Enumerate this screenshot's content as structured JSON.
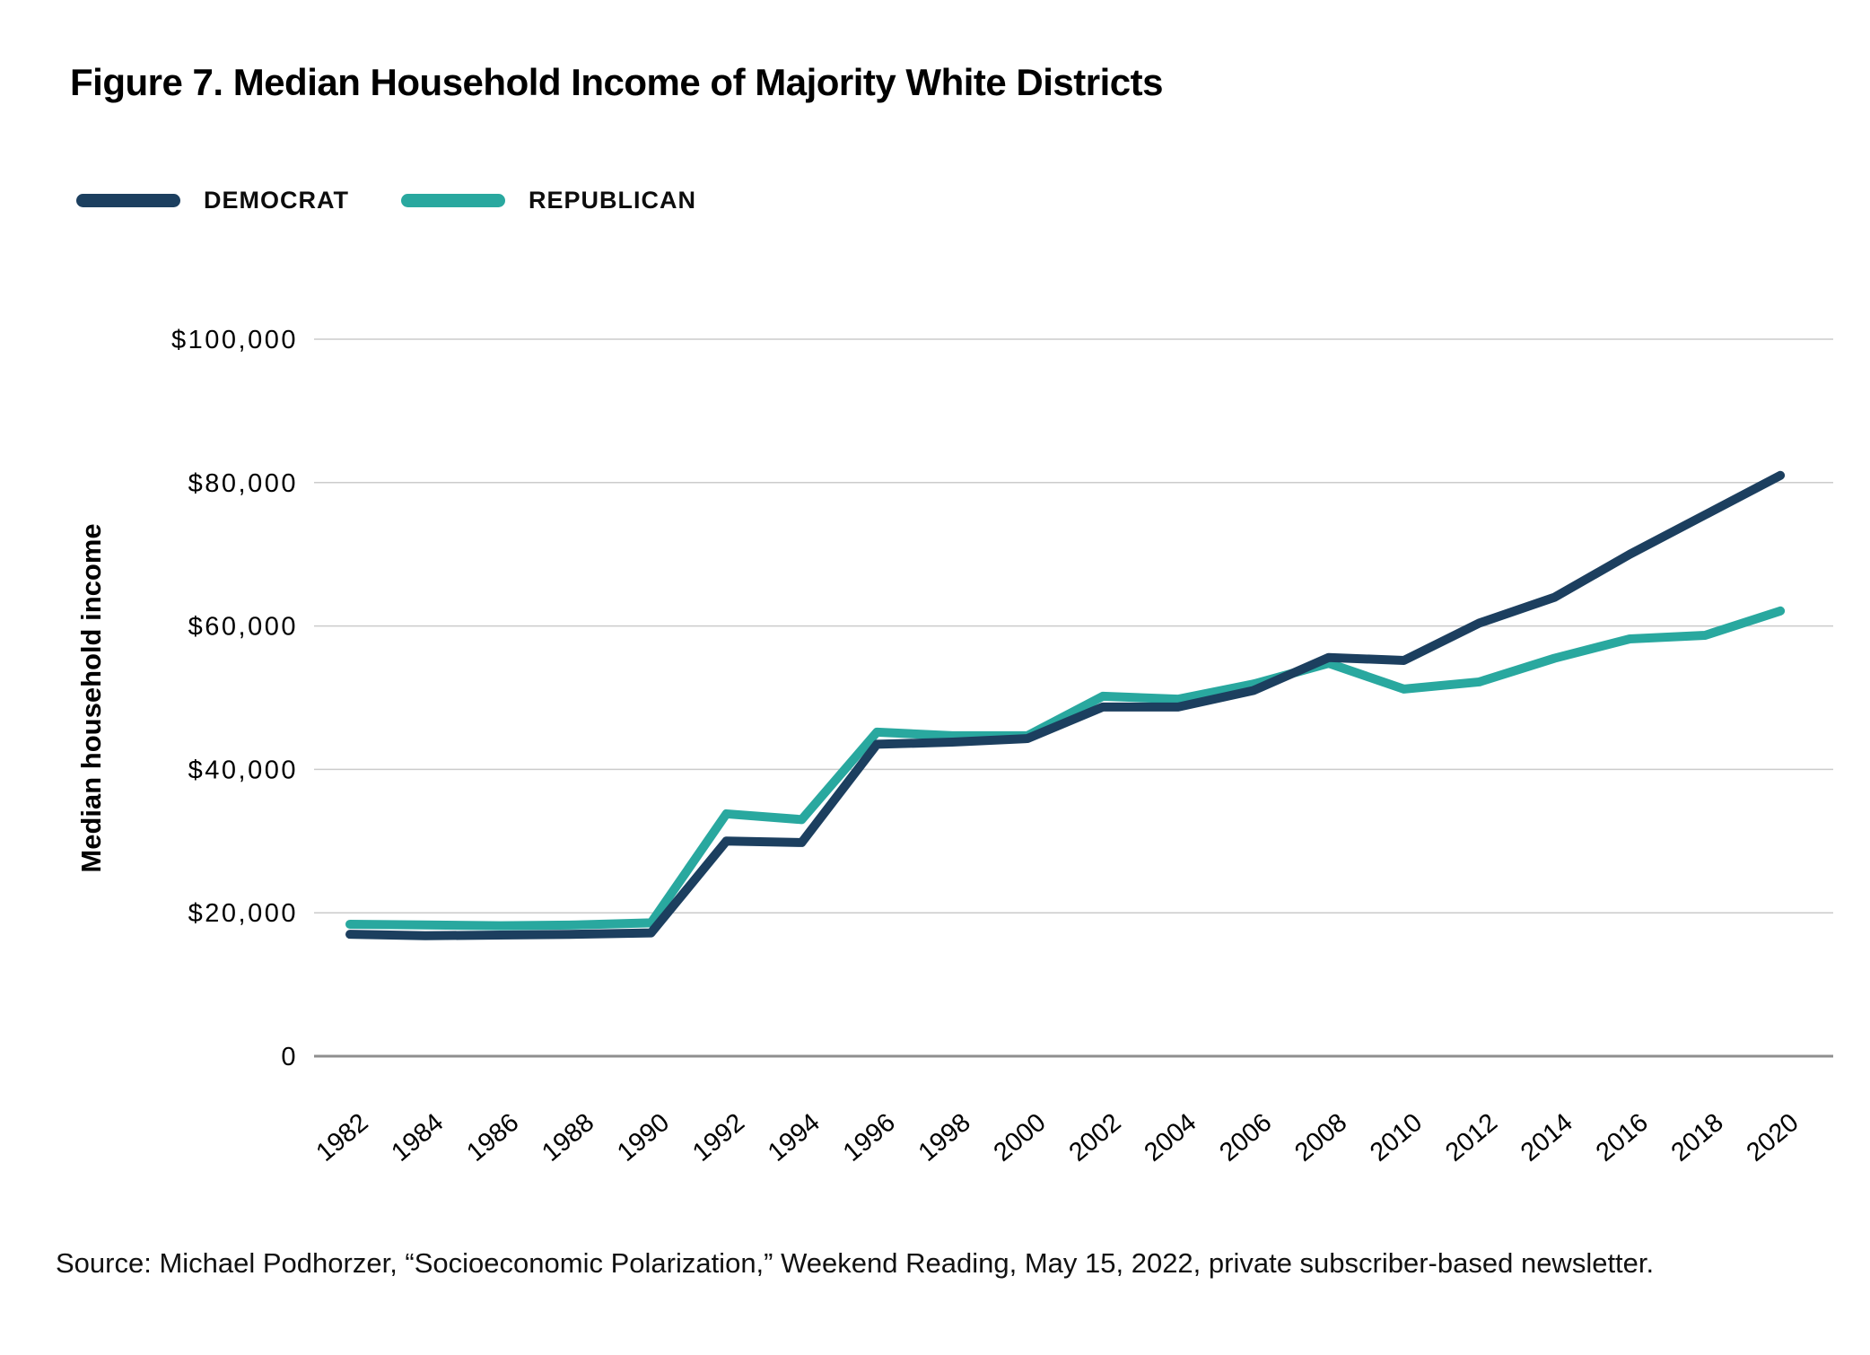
{
  "title": "Figure 7. Median Household Income of Majority White Districts",
  "legend": {
    "democrat": "DEMOCRAT",
    "republican": "REPUBLICAN"
  },
  "source": "Source: Michael Podhorzer, “Socioeconomic Polarization,” Weekend Reading, May 15, 2022, private subscriber-based newsletter.",
  "colors": {
    "democrat": "#1C3F5F",
    "republican": "#29A89F",
    "grid": "#CBCBCB",
    "axis": "#8F8F8F",
    "text": "#000000"
  },
  "chart_data": {
    "type": "line",
    "title": "Figure 7. Median Household Income of Majority White Districts",
    "xlabel": "",
    "ylabel": "Median household income",
    "x": [
      1982,
      1984,
      1986,
      1988,
      1990,
      1992,
      1994,
      1996,
      1998,
      2000,
      2002,
      2004,
      2006,
      2008,
      2010,
      2012,
      2014,
      2016,
      2018,
      2020
    ],
    "series": [
      {
        "name": "DEMOCRAT",
        "color_key": "democrat",
        "values": [
          17000,
          16800,
          16900,
          17000,
          17200,
          30000,
          29800,
          43500,
          43800,
          44300,
          48700,
          48700,
          51000,
          55600,
          55200,
          60400,
          64000,
          70000,
          75500,
          81000
        ]
      },
      {
        "name": "REPUBLICAN",
        "color_key": "republican",
        "values": [
          18400,
          18300,
          18200,
          18300,
          18600,
          33800,
          33000,
          45200,
          44700,
          44700,
          50200,
          49800,
          51900,
          54800,
          51200,
          52200,
          55500,
          58200,
          58700,
          62100
        ]
      }
    ],
    "ylim": [
      0,
      100000
    ],
    "yticks": [
      0,
      20000,
      40000,
      60000,
      80000,
      100000
    ],
    "ytick_labels": [
      "0",
      "$20,000",
      "$40,000",
      "$60,000",
      "$80,000",
      "$100,000"
    ],
    "grid": "horizontal",
    "legend_position": "top-left"
  }
}
